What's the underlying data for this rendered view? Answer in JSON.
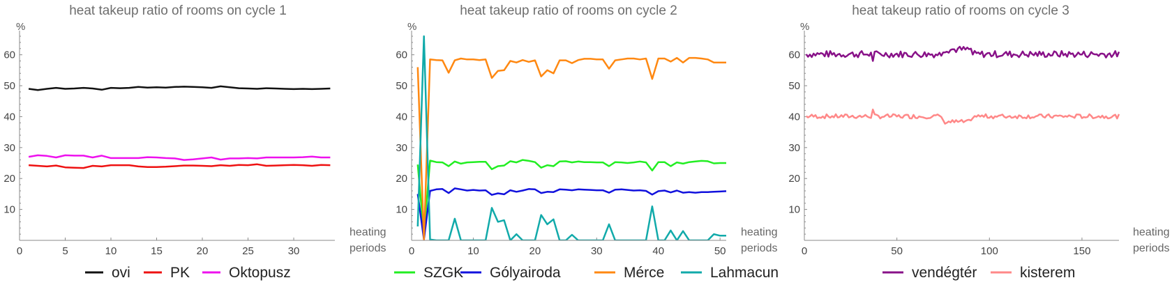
{
  "chart_data": [
    {
      "type": "line",
      "title": "heat takeup ratio of rooms on cycle 1",
      "ylabel": "%",
      "xlabel": "heating periods",
      "xlim": [
        0,
        34.5
      ],
      "ylim": [
        0,
        66
      ],
      "xticks": [
        0,
        5,
        10,
        15,
        20,
        25,
        30
      ],
      "yticks": [
        10,
        20,
        30,
        40,
        50,
        60
      ],
      "x": [
        1,
        2,
        3,
        4,
        5,
        6,
        7,
        8,
        9,
        10,
        11,
        12,
        13,
        14,
        15,
        16,
        17,
        18,
        19,
        20,
        21,
        22,
        23,
        24,
        25,
        26,
        27,
        28,
        29,
        30,
        31,
        32,
        33,
        34
      ],
      "series": [
        {
          "name": "ovi",
          "color": "#111111",
          "values": [
            49.0,
            48.6,
            49.0,
            49.3,
            49.0,
            49.1,
            49.3,
            49.1,
            48.7,
            49.3,
            49.2,
            49.3,
            49.6,
            49.4,
            49.5,
            49.4,
            49.6,
            49.7,
            49.6,
            49.5,
            49.3,
            49.8,
            49.5,
            49.2,
            49.1,
            49.0,
            49.2,
            49.1,
            49.0,
            48.9,
            49.0,
            48.9,
            49.0,
            49.1
          ]
        },
        {
          "name": "PK",
          "color": "#ee1111",
          "values": [
            24.3,
            24.1,
            23.9,
            24.2,
            23.6,
            23.5,
            23.4,
            24.1,
            23.9,
            24.3,
            24.3,
            24.3,
            23.9,
            23.7,
            23.7,
            23.8,
            24.0,
            24.2,
            24.2,
            24.1,
            24.0,
            24.3,
            24.1,
            24.4,
            24.3,
            24.6,
            24.1,
            24.2,
            24.3,
            24.4,
            24.3,
            24.1,
            24.4,
            24.3
          ]
        },
        {
          "name": "Oktopusz",
          "color": "#ee11ee",
          "values": [
            27.0,
            27.5,
            27.3,
            26.8,
            27.5,
            27.4,
            27.4,
            26.8,
            27.4,
            26.6,
            26.6,
            26.6,
            26.6,
            26.9,
            26.8,
            26.6,
            26.5,
            26.0,
            26.2,
            26.5,
            26.8,
            26.1,
            26.5,
            26.5,
            26.6,
            26.5,
            26.8,
            26.8,
            26.8,
            26.8,
            26.9,
            27.1,
            26.8,
            26.8
          ]
        }
      ]
    },
    {
      "type": "line",
      "title": "heat takeup ratio of rooms on cycle 2",
      "ylabel": "%",
      "xlabel": "heating periods",
      "xlim": [
        0,
        51
      ],
      "ylim": [
        0,
        66
      ],
      "xticks": [
        0,
        10,
        20,
        30,
        40,
        50
      ],
      "yticks": [
        10,
        20,
        30,
        40,
        50,
        60
      ],
      "x": [
        1,
        2,
        3,
        4,
        5,
        6,
        7,
        8,
        9,
        10,
        11,
        12,
        13,
        14,
        15,
        16,
        17,
        18,
        19,
        20,
        21,
        22,
        23,
        24,
        25,
        26,
        27,
        28,
        29,
        30,
        31,
        32,
        33,
        34,
        35,
        36,
        37,
        38,
        39,
        40,
        41,
        42,
        43,
        44,
        45,
        46,
        47,
        48,
        49,
        50,
        51
      ],
      "series": [
        {
          "name": "SZGK",
          "color": "#22ee22",
          "values": [
            24.5,
            2.0,
            25.8,
            25.3,
            25.2,
            24.0,
            25.5,
            24.8,
            25.2,
            25.3,
            25.4,
            25.4,
            23.0,
            24.0,
            24.2,
            25.6,
            25.2,
            26.0,
            25.7,
            25.3,
            23.5,
            24.3,
            24.0,
            25.5,
            25.6,
            25.2,
            25.5,
            25.3,
            25.3,
            25.2,
            25.2,
            24.0,
            25.3,
            25.2,
            25.0,
            25.2,
            25.5,
            25.2,
            22.6,
            25.3,
            25.3,
            24.0,
            25.2,
            24.8,
            25.3,
            25.5,
            25.7,
            25.6,
            24.9,
            25.0,
            25.0
          ]
        },
        {
          "name": "Gólyairoda",
          "color": "#1111dd",
          "values": [
            15.0,
            0.3,
            16.0,
            16.5,
            16.6,
            15.3,
            16.8,
            16.5,
            16.1,
            16.3,
            16.1,
            16.2,
            14.7,
            15.2,
            14.9,
            16.2,
            15.7,
            16.1,
            16.6,
            16.5,
            15.3,
            15.7,
            15.6,
            16.5,
            16.4,
            16.2,
            16.5,
            16.4,
            16.3,
            16.2,
            16.2,
            15.4,
            16.4,
            16.5,
            16.3,
            16.1,
            16.2,
            16.0,
            14.8,
            15.9,
            16.1,
            15.5,
            16.1,
            15.4,
            15.6,
            15.4,
            15.6,
            15.6,
            15.7,
            15.8,
            15.9
          ]
        },
        {
          "name": "Mérce",
          "color": "#ff8811",
          "values": [
            56.0,
            0.3,
            58.5,
            58.3,
            58.2,
            54.2,
            58.2,
            58.8,
            58.5,
            58.5,
            58.3,
            58.5,
            52.5,
            54.8,
            55.0,
            58.0,
            57.5,
            58.3,
            57.7,
            58.2,
            53.0,
            55.0,
            54.0,
            58.2,
            58.2,
            57.3,
            58.3,
            58.7,
            58.7,
            58.5,
            58.5,
            55.5,
            58.2,
            58.5,
            58.8,
            58.8,
            58.5,
            58.8,
            52.2,
            58.8,
            58.8,
            57.8,
            59.0,
            57.5,
            59.0,
            59.0,
            58.8,
            58.5,
            57.5,
            57.5,
            57.5
          ]
        },
        {
          "name": "Lahmacun",
          "color": "#11aaaa",
          "values": [
            4.5,
            66.0,
            0.3,
            0.0,
            0.0,
            0.0,
            7.0,
            0.0,
            0.0,
            0.0,
            0.0,
            0.0,
            10.5,
            6.0,
            6.5,
            0.0,
            2.0,
            0.0,
            0.0,
            0.0,
            8.2,
            5.2,
            6.8,
            0.0,
            0.0,
            1.8,
            0.0,
            0.0,
            0.0,
            0.0,
            0.0,
            5.2,
            0.0,
            0.0,
            0.0,
            0.0,
            0.0,
            0.0,
            11.0,
            0.0,
            0.0,
            3.2,
            0.0,
            3.0,
            0.0,
            0.0,
            0.0,
            0.0,
            2.0,
            1.5,
            1.5
          ]
        }
      ]
    },
    {
      "type": "line",
      "title": "heat takeup ratio of rooms on cycle 3",
      "ylabel": "%",
      "xlabel": "heating periods",
      "xlim": [
        0,
        170
      ],
      "ylim": [
        0,
        66
      ],
      "xticks": [
        0,
        50,
        100,
        150
      ],
      "yticks": [
        10,
        20,
        30,
        40,
        50,
        60
      ],
      "series": [
        {
          "name": "vendégtér",
          "color": "#881188",
          "values": []
        },
        {
          "name": "kisterem",
          "color": "#ff8888",
          "values": []
        }
      ]
    }
  ]
}
